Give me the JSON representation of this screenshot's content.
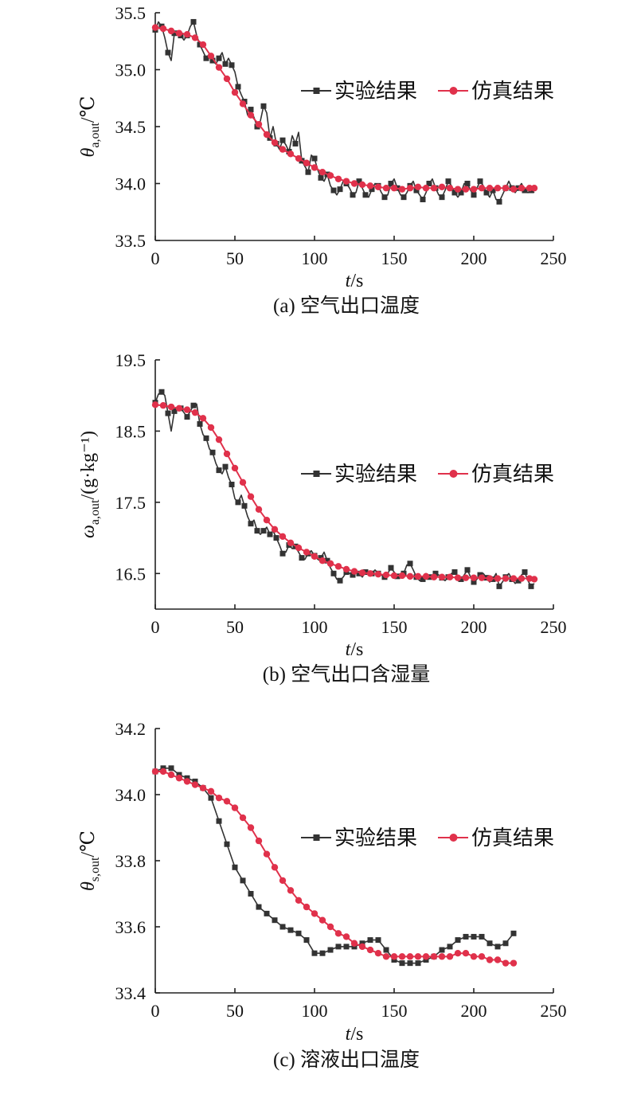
{
  "chart_data": [
    {
      "type": "line",
      "panel": "a",
      "caption": "(a) 空气出口温度",
      "xlabel": {
        "var": "t",
        "unit": "/s"
      },
      "ylabel": {
        "var": "θ",
        "sub": "a,out",
        "unit": "/℃"
      },
      "xlim": [
        0,
        250
      ],
      "ylim": [
        33.5,
        35.5
      ],
      "xticks": [
        "0",
        "50",
        "100",
        "150",
        "200",
        "250"
      ],
      "yticks": [
        "33.5",
        "34.0",
        "34.5",
        "35.0",
        "35.5"
      ],
      "x_tick_values": [
        0,
        50,
        100,
        150,
        200,
        250
      ],
      "y_tick_values": [
        33.5,
        34.0,
        34.5,
        35.0,
        35.5
      ],
      "legend_position": "upper-right",
      "series": [
        {
          "name": "实验结果",
          "color": "#333333",
          "marker": "square",
          "x": [
            0,
            2,
            4,
            6,
            8,
            10,
            12,
            14,
            16,
            18,
            20,
            22,
            24,
            26,
            28,
            30,
            32,
            34,
            36,
            38,
            40,
            42,
            44,
            46,
            48,
            50,
            52,
            54,
            56,
            58,
            60,
            62,
            64,
            66,
            68,
            70,
            72,
            74,
            76,
            78,
            80,
            82,
            84,
            86,
            88,
            90,
            92,
            94,
            96,
            98,
            100,
            102,
            104,
            106,
            108,
            110,
            112,
            114,
            116,
            118,
            120,
            122,
            124,
            126,
            128,
            130,
            132,
            134,
            136,
            138,
            140,
            142,
            144,
            146,
            148,
            150,
            152,
            154,
            156,
            158,
            160,
            162,
            164,
            166,
            168,
            170,
            172,
            174,
            176,
            178,
            180,
            182,
            184,
            186,
            188,
            190,
            192,
            194,
            196,
            198,
            200,
            202,
            204,
            206,
            208,
            210,
            212,
            214,
            216,
            218,
            220,
            222,
            224,
            226,
            228,
            230,
            232,
            234,
            236,
            238
          ],
          "y": [
            35.35,
            35.42,
            35.38,
            35.28,
            35.15,
            35.08,
            35.32,
            35.34,
            35.3,
            35.26,
            35.3,
            35.38,
            35.42,
            35.3,
            35.22,
            35.16,
            35.1,
            35.14,
            35.08,
            35.05,
            35.1,
            35.15,
            35.05,
            35.1,
            35.04,
            34.98,
            34.85,
            34.78,
            34.72,
            34.6,
            34.65,
            34.58,
            34.5,
            34.55,
            34.68,
            34.62,
            34.4,
            34.5,
            34.35,
            34.3,
            34.38,
            34.34,
            34.28,
            34.42,
            34.35,
            34.45,
            34.2,
            34.15,
            34.1,
            34.25,
            34.22,
            34.12,
            34.05,
            34.02,
            34.08,
            33.98,
            33.94,
            33.9,
            33.95,
            34.02,
            34.0,
            33.96,
            33.9,
            33.92,
            34.02,
            33.96,
            33.9,
            33.88,
            33.95,
            34.0,
            33.98,
            33.92,
            33.88,
            33.9,
            34.0,
            34.04,
            33.96,
            33.9,
            33.88,
            33.92,
            33.98,
            34.02,
            33.94,
            33.9,
            33.86,
            33.92,
            34.0,
            34.04,
            33.96,
            33.9,
            33.88,
            33.94,
            34.02,
            33.98,
            33.92,
            33.88,
            33.92,
            34.0,
            34.0,
            33.94,
            33.9,
            33.96,
            34.02,
            33.98,
            33.92,
            33.88,
            33.94,
            33.86,
            33.84,
            33.9,
            33.96,
            34.02,
            33.96,
            33.92,
            33.96,
            34.0,
            33.94,
            33.92,
            33.94,
            33.92
          ]
        },
        {
          "name": "仿真结果",
          "color": "#e0314b",
          "marker": "circle",
          "x": [
            0,
            5,
            10,
            15,
            20,
            25,
            30,
            35,
            40,
            45,
            50,
            55,
            60,
            65,
            70,
            75,
            80,
            85,
            90,
            95,
            100,
            105,
            110,
            115,
            120,
            125,
            130,
            135,
            140,
            145,
            150,
            155,
            160,
            165,
            170,
            175,
            180,
            185,
            190,
            195,
            200,
            205,
            210,
            215,
            220,
            225,
            230,
            235,
            238
          ],
          "y": [
            35.37,
            35.36,
            35.34,
            35.32,
            35.31,
            35.28,
            35.22,
            35.12,
            35.02,
            34.92,
            34.8,
            34.7,
            34.6,
            34.52,
            34.43,
            34.36,
            34.3,
            34.26,
            34.22,
            34.18,
            34.14,
            34.1,
            34.07,
            34.04,
            34.02,
            34.0,
            33.99,
            33.98,
            33.97,
            33.96,
            33.96,
            33.95,
            33.96,
            33.97,
            33.96,
            33.96,
            33.97,
            33.96,
            33.95,
            33.95,
            33.95,
            33.96,
            33.96,
            33.96,
            33.96,
            33.95,
            33.96,
            33.96,
            33.96
          ]
        }
      ]
    },
    {
      "type": "line",
      "panel": "b",
      "caption": "(b) 空气出口含湿量",
      "xlabel": {
        "var": "t",
        "unit": "/s"
      },
      "ylabel": {
        "var": "ω",
        "sub": "a,out",
        "unit": "/(g·kg⁻¹)"
      },
      "xlim": [
        0,
        250
      ],
      "ylim": [
        16.0,
        19.5
      ],
      "xticks": [
        "0",
        "50",
        "100",
        "150",
        "200",
        "250"
      ],
      "yticks": [
        "16.5",
        "17.5",
        "18.5",
        "19.5"
      ],
      "x_tick_values": [
        0,
        50,
        100,
        150,
        200,
        250
      ],
      "y_tick_values": [
        16.5,
        17.5,
        18.5,
        19.5
      ],
      "legend_position": "upper-right",
      "series": [
        {
          "name": "实验结果",
          "color": "#333333",
          "marker": "square",
          "x": [
            0,
            2,
            4,
            6,
            8,
            10,
            12,
            14,
            16,
            18,
            20,
            22,
            24,
            26,
            28,
            30,
            32,
            34,
            36,
            38,
            40,
            42,
            44,
            46,
            48,
            50,
            52,
            54,
            56,
            58,
            60,
            62,
            64,
            66,
            68,
            70,
            72,
            74,
            76,
            78,
            80,
            82,
            84,
            86,
            88,
            90,
            92,
            94,
            96,
            98,
            100,
            102,
            104,
            106,
            108,
            110,
            112,
            114,
            116,
            118,
            120,
            122,
            124,
            126,
            128,
            130,
            132,
            134,
            136,
            138,
            140,
            142,
            144,
            146,
            148,
            150,
            152,
            154,
            156,
            158,
            160,
            162,
            164,
            166,
            168,
            170,
            172,
            174,
            176,
            178,
            180,
            182,
            184,
            186,
            188,
            190,
            192,
            194,
            196,
            198,
            200,
            202,
            204,
            206,
            208,
            210,
            212,
            214,
            216,
            218,
            220,
            222,
            224,
            226,
            228,
            230,
            232,
            234,
            236,
            238
          ],
          "y": [
            18.9,
            19.02,
            19.05,
            19.0,
            18.75,
            18.5,
            18.78,
            18.8,
            18.82,
            18.76,
            18.7,
            18.78,
            18.86,
            18.88,
            18.6,
            18.45,
            18.4,
            18.25,
            18.2,
            18.05,
            17.95,
            17.9,
            18.0,
            17.85,
            17.75,
            17.55,
            17.5,
            17.6,
            17.45,
            17.3,
            17.2,
            17.25,
            17.1,
            17.05,
            17.1,
            17.15,
            17.05,
            17.1,
            17.0,
            16.9,
            16.78,
            16.8,
            16.9,
            16.85,
            16.88,
            16.8,
            16.72,
            16.7,
            16.78,
            16.82,
            16.75,
            16.7,
            16.72,
            16.8,
            16.68,
            16.58,
            16.5,
            16.42,
            16.4,
            16.45,
            16.52,
            16.5,
            16.48,
            16.55,
            16.5,
            16.45,
            16.52,
            16.48,
            16.5,
            16.55,
            16.5,
            16.48,
            16.45,
            16.5,
            16.58,
            16.52,
            16.46,
            16.44,
            16.5,
            16.62,
            16.64,
            16.55,
            16.45,
            16.4,
            16.42,
            16.5,
            16.45,
            16.42,
            16.5,
            16.48,
            16.44,
            16.4,
            16.45,
            16.5,
            16.52,
            16.46,
            16.42,
            16.48,
            16.55,
            16.45,
            16.38,
            16.42,
            16.48,
            16.5,
            16.44,
            16.38,
            16.42,
            16.5,
            16.32,
            16.38,
            16.45,
            16.5,
            16.42,
            16.36,
            16.4,
            16.48,
            16.52,
            16.4,
            16.32,
            16.36
          ]
        },
        {
          "name": "仿真结果",
          "color": "#e0314b",
          "marker": "circle",
          "x": [
            0,
            5,
            10,
            15,
            20,
            25,
            30,
            35,
            40,
            45,
            50,
            55,
            60,
            65,
            70,
            75,
            80,
            85,
            90,
            95,
            100,
            105,
            110,
            115,
            120,
            125,
            130,
            135,
            140,
            145,
            150,
            155,
            160,
            165,
            170,
            175,
            180,
            185,
            190,
            195,
            200,
            205,
            210,
            215,
            220,
            225,
            230,
            235,
            238
          ],
          "y": [
            18.87,
            18.86,
            18.84,
            18.82,
            18.8,
            18.76,
            18.68,
            18.55,
            18.38,
            18.18,
            17.98,
            17.78,
            17.58,
            17.4,
            17.25,
            17.12,
            17.02,
            16.93,
            16.86,
            16.8,
            16.74,
            16.68,
            16.64,
            16.6,
            16.56,
            16.53,
            16.51,
            16.5,
            16.49,
            16.48,
            16.47,
            16.47,
            16.46,
            16.46,
            16.46,
            16.45,
            16.45,
            16.45,
            16.44,
            16.44,
            16.44,
            16.44,
            16.43,
            16.43,
            16.43,
            16.43,
            16.43,
            16.43,
            16.42
          ]
        }
      ]
    },
    {
      "type": "line",
      "panel": "c",
      "caption": "(c) 溶液出口温度",
      "xlabel": {
        "var": "t",
        "unit": "/s"
      },
      "ylabel": {
        "var": "θ",
        "sub": "s,out",
        "unit": "/℃"
      },
      "xlim": [
        0,
        250
      ],
      "ylim": [
        33.4,
        34.2
      ],
      "xticks": [
        "0",
        "50",
        "100",
        "150",
        "200",
        "250"
      ],
      "yticks": [
        "33.4",
        "33.6",
        "33.8",
        "34.0",
        "34.2"
      ],
      "x_tick_values": [
        0,
        50,
        100,
        150,
        200,
        250
      ],
      "y_tick_values": [
        33.4,
        33.6,
        33.8,
        34.0,
        34.2
      ],
      "legend_position": "upper-right",
      "series": [
        {
          "name": "实验结果",
          "color": "#333333",
          "marker": "square",
          "x": [
            0,
            5,
            10,
            15,
            20,
            25,
            30,
            35,
            40,
            45,
            50,
            55,
            60,
            65,
            70,
            75,
            80,
            85,
            90,
            95,
            100,
            105,
            110,
            115,
            120,
            125,
            130,
            135,
            140,
            145,
            150,
            155,
            160,
            165,
            170,
            175,
            180,
            185,
            190,
            195,
            200,
            205,
            210,
            215,
            220,
            225
          ],
          "y": [
            34.07,
            34.08,
            34.08,
            34.06,
            34.05,
            34.04,
            34.02,
            33.99,
            33.92,
            33.85,
            33.78,
            33.74,
            33.7,
            33.66,
            33.64,
            33.62,
            33.6,
            33.59,
            33.58,
            33.56,
            33.52,
            33.52,
            33.53,
            33.54,
            33.54,
            33.54,
            33.55,
            33.56,
            33.56,
            33.53,
            33.5,
            33.49,
            33.49,
            33.49,
            33.5,
            33.51,
            33.53,
            33.54,
            33.56,
            33.57,
            33.57,
            33.57,
            33.55,
            33.54,
            33.55,
            33.58
          ]
        },
        {
          "name": "仿真结果",
          "color": "#e0314b",
          "marker": "circle",
          "x": [
            0,
            5,
            10,
            15,
            20,
            25,
            30,
            35,
            40,
            45,
            50,
            55,
            60,
            65,
            70,
            75,
            80,
            85,
            90,
            95,
            100,
            105,
            110,
            115,
            120,
            125,
            130,
            135,
            140,
            145,
            150,
            155,
            160,
            165,
            170,
            175,
            180,
            185,
            190,
            195,
            200,
            205,
            210,
            215,
            220,
            225
          ],
          "y": [
            34.07,
            34.07,
            34.06,
            34.05,
            34.04,
            34.03,
            34.02,
            34.01,
            33.99,
            33.98,
            33.96,
            33.93,
            33.9,
            33.86,
            33.82,
            33.78,
            33.74,
            33.71,
            33.68,
            33.66,
            33.64,
            33.62,
            33.6,
            33.58,
            33.57,
            33.55,
            33.54,
            33.53,
            33.52,
            33.51,
            33.51,
            33.51,
            33.51,
            33.51,
            33.51,
            33.51,
            33.51,
            33.51,
            33.52,
            33.52,
            33.51,
            33.51,
            33.5,
            33.5,
            33.49,
            33.49
          ]
        }
      ]
    }
  ]
}
